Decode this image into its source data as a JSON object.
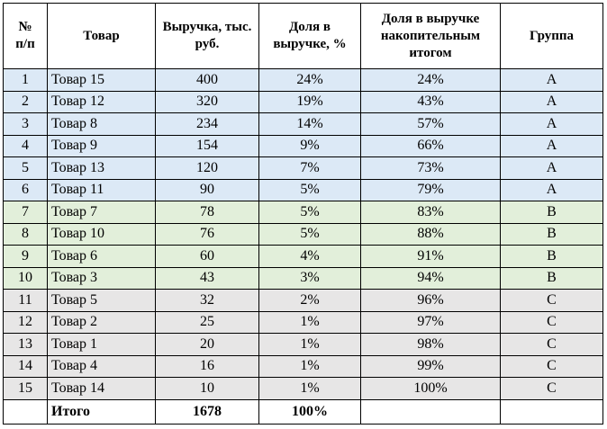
{
  "table": {
    "header": [
      "№ п/п",
      "Товар",
      "Выручка, тыс. руб.",
      "Доля в выручке, %",
      "Доля в выручке накопительным итогом",
      "Группа"
    ],
    "rows": [
      [
        "1",
        "Товар 15",
        "400",
        "24%",
        "24%",
        "A"
      ],
      [
        "2",
        "Товар 12",
        "320",
        "19%",
        "43%",
        "A"
      ],
      [
        "3",
        "Товар 8",
        "234",
        "14%",
        "57%",
        "A"
      ],
      [
        "4",
        "Товар 9",
        "154",
        "9%",
        "66%",
        "A"
      ],
      [
        "5",
        "Товар 13",
        "120",
        "7%",
        "73%",
        "A"
      ],
      [
        "6",
        "Товар 11",
        "90",
        "5%",
        "79%",
        "A"
      ],
      [
        "7",
        "Товар 7",
        "78",
        "5%",
        "83%",
        "B"
      ],
      [
        "8",
        "Товар 10",
        "76",
        "5%",
        "88%",
        "B"
      ],
      [
        "9",
        "Товар 6",
        "60",
        "4%",
        "91%",
        "B"
      ],
      [
        "10",
        "Товар 3",
        "43",
        "3%",
        "94%",
        "B"
      ],
      [
        "11",
        "Товар 5",
        "32",
        "2%",
        "96%",
        "C"
      ],
      [
        "12",
        "Товар 2",
        "25",
        "1%",
        "97%",
        "C"
      ],
      [
        "13",
        "Товар 1",
        "20",
        "1%",
        "98%",
        "C"
      ],
      [
        "14",
        "Товар 4",
        "16",
        "1%",
        "99%",
        "C"
      ],
      [
        "15",
        "Товар 14",
        "10",
        "1%",
        "100%",
        "C"
      ]
    ],
    "total": {
      "label": "Итого",
      "revenue": "1678",
      "share": "100%"
    },
    "group_colors": {
      "A": "#dce9f6",
      "B": "#e2efda",
      "C": "#e7e6e6"
    }
  }
}
